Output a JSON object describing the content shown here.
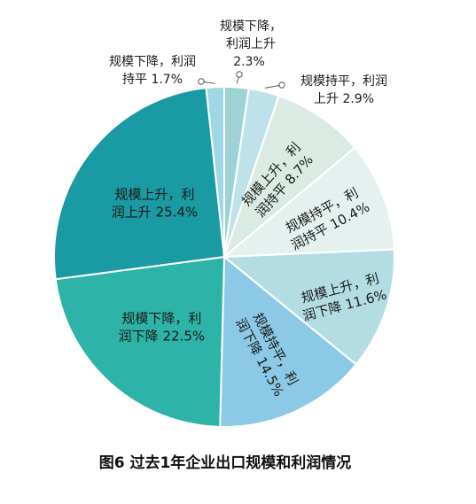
{
  "chart_data": {
    "type": "pie",
    "caption": "图6  过去1年企业出口规模和利润情况",
    "slices": [
      {
        "line1": "规模下降，",
        "line2": "利润上升",
        "label": "规模下降，利润上升",
        "value": 2.3,
        "value_label": "2.3%",
        "color": "#9dd3d5"
      },
      {
        "line1": "规模持平，利润",
        "line2": "上升",
        "label": "规模持平，利润上升",
        "value": 2.9,
        "value_label": "2.9%",
        "color": "#bfe2ea"
      },
      {
        "line1": "规模上升，利",
        "line2": "润持平",
        "label": "规模上升，利润持平",
        "value": 8.7,
        "value_label": "8.7%",
        "color": "#d9ebe2"
      },
      {
        "line1": "规模持平，利",
        "line2": "润持平",
        "label": "规模持平，利润持平",
        "value": 10.4,
        "value_label": "10.4%",
        "color": "#e4f1ef"
      },
      {
        "line1": "规模上升，利",
        "line2": "润下降",
        "label": "规模上升，利润下降",
        "value": 11.6,
        "value_label": "11.6%",
        "color": "#b3dde3"
      },
      {
        "line1": "规模持平，利",
        "line2": "润下降",
        "label": "规模持平，利润下降",
        "value": 14.5,
        "value_label": "14.5%",
        "color": "#8cc9e6"
      },
      {
        "line1": "规模下降，利",
        "line2": "润下降",
        "label": "规模下降，利润下降",
        "value": 22.5,
        "value_label": "22.5%",
        "color": "#2db3a7"
      },
      {
        "line1": "规模上升，利",
        "line2": "润上升",
        "label": "规模上升，利润上升",
        "value": 25.4,
        "value_label": "25.4%",
        "color": "#1a9aa2"
      },
      {
        "line1": "规模下降，利润",
        "line2": "持平",
        "label": "规模下降，利润持平",
        "value": 1.7,
        "value_label": "1.7%",
        "color": "#9fd8e4"
      }
    ]
  }
}
